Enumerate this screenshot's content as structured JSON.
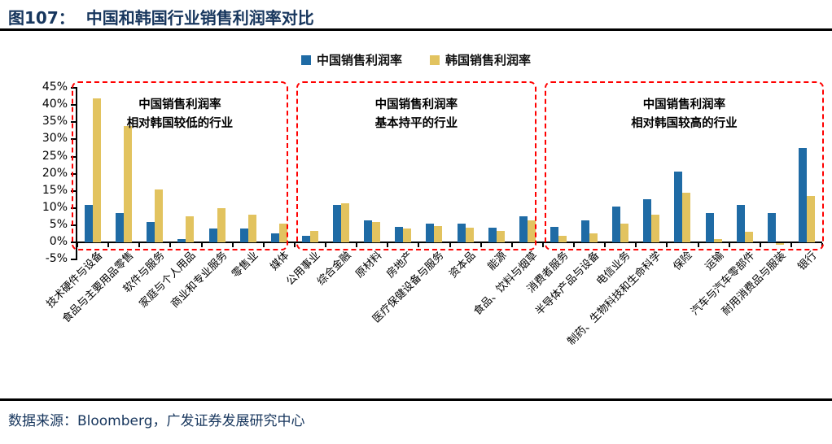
{
  "header": {
    "figure_label": "图107：",
    "title": "中国和韩国行业销售利润率对比"
  },
  "footer": {
    "source": "数据来源：Bloomberg，广发证券发展研究中心"
  },
  "chart_data": {
    "type": "bar",
    "title": "中国和韩国行业销售利润率对比",
    "legend": [
      {
        "name": "中国销售利润率",
        "color": "#1F6BA5"
      },
      {
        "name": "韩国销售利润率",
        "color": "#E2C35F"
      }
    ],
    "legend_position": "top",
    "grid": false,
    "ylim": [
      -5,
      45
    ],
    "ytick_step": 5,
    "ytick_suffix": "%",
    "categories": [
      "技术硬件与设备",
      "食品与主要用品零售",
      "软件与服务",
      "家庭与个人用品",
      "商业和专业服务",
      "零售业",
      "媒体",
      "公用事业",
      "综合金融",
      "原材料",
      "房地产",
      "医疗保健设备与服务",
      "资本品",
      "能源",
      "食品、饮料与烟草",
      "消费者服务",
      "半导体产品与设备",
      "电信业务",
      "制药、生物科技和生命科学",
      "保险",
      "运输",
      "汽车与汽车零部件",
      "耐用消费品与服装",
      "银行"
    ],
    "series": [
      {
        "name": "中国销售利润率",
        "color": "#1F6BA5",
        "values": [
          11,
          8.5,
          6,
          1,
          4,
          4,
          2.5,
          1.8,
          11,
          6.5,
          4.5,
          5.5,
          5.5,
          4.3,
          7.5,
          4.5,
          6.5,
          10.5,
          12.5,
          20.5,
          8.5,
          11,
          8.5,
          27.5
        ]
      },
      {
        "name": "韩国销售利润率",
        "color": "#E2C35F",
        "values": [
          42,
          34,
          15.5,
          7.5,
          10,
          8,
          5.5,
          3.2,
          11.3,
          6,
          4,
          4.8,
          4.3,
          3.2,
          6.5,
          2,
          2.5,
          5.5,
          8,
          14.5,
          1,
          3,
          -0.5,
          13.5
        ]
      }
    ],
    "regions": [
      {
        "label_line1": "中国销售利润率",
        "label_line2": "相对韩国较低的行业",
        "start": 0,
        "end": 6
      },
      {
        "label_line1": "中国销售利润率",
        "label_line2": "基本持平的行业",
        "start": 7,
        "end": 14
      },
      {
        "label_line1": "中国销售利润率",
        "label_line2": "相对韩国较高的行业",
        "start": 15,
        "end": 23
      }
    ],
    "region_border_color": "#FF0000"
  }
}
